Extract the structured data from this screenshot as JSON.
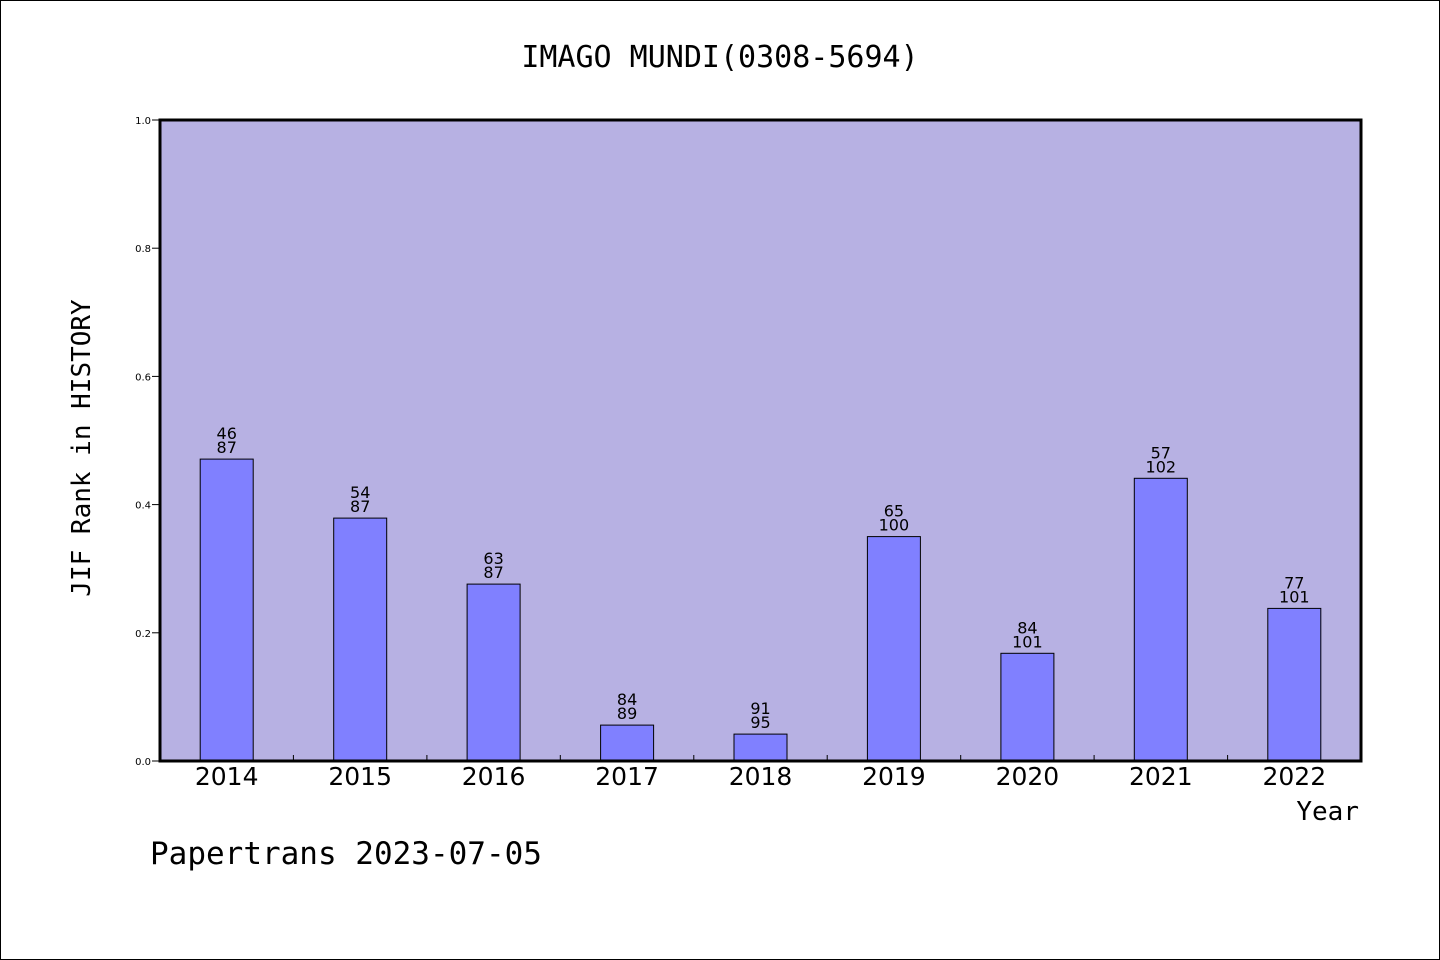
{
  "chart_data": {
    "type": "bar",
    "title": "IMAGO MUNDI(0308-5694)",
    "xlabel": "Year",
    "ylabel": "JIF Rank in HISTORY",
    "ylim": [
      0,
      1
    ],
    "yticks": [
      "0.0",
      "0.2",
      "0.4",
      "0.6",
      "0.8",
      "1.0"
    ],
    "grid": false,
    "categories": [
      "2014",
      "2015",
      "2016",
      "2017",
      "2018",
      "2019",
      "2020",
      "2021",
      "2022"
    ],
    "values": [
      0.471,
      0.379,
      0.276,
      0.056,
      0.042,
      0.35,
      0.168,
      0.441,
      0.238
    ],
    "rank": [
      "46",
      "54",
      "63",
      "84",
      "91",
      "65",
      "84",
      "57",
      "77"
    ],
    "total": [
      "87",
      "87",
      "87",
      "89",
      "95",
      "100",
      "101",
      "102",
      "101"
    ],
    "colors": {
      "plot_bg": "#b7b1e3",
      "bar": "#8080ff",
      "edge": "#000000"
    }
  },
  "footer": "Papertrans 2023-07-05"
}
